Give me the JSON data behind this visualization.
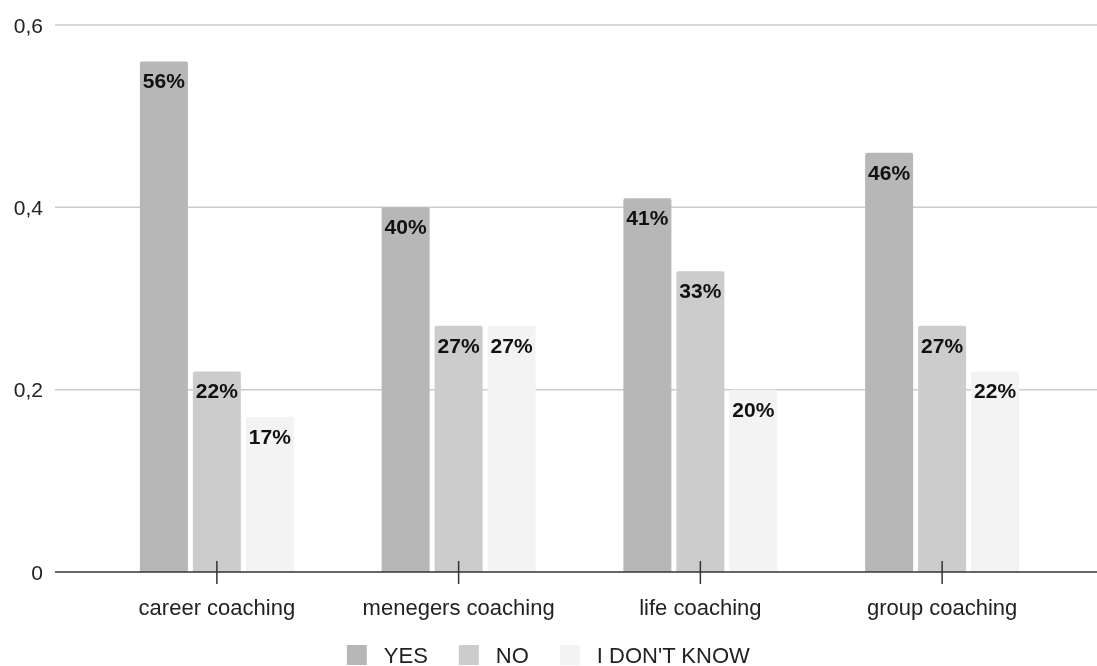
{
  "chart_data": {
    "type": "bar",
    "categories": [
      "career coaching",
      "menegers coaching",
      "life coaching",
      "group coaching"
    ],
    "series": [
      {
        "name": "YES",
        "color": "#b7b7b7",
        "values": [
          0.56,
          0.4,
          0.41,
          0.46
        ],
        "value_labels": [
          "56%",
          "40%",
          "41%",
          "46%"
        ]
      },
      {
        "name": "NO",
        "color": "#cccccc",
        "values": [
          0.22,
          0.27,
          0.33,
          0.27
        ],
        "value_labels": [
          "22%",
          "27%",
          "33%",
          "27%"
        ]
      },
      {
        "name": "I DON'T KNOW",
        "color": "#f3f3f3",
        "values": [
          0.17,
          0.27,
          0.2,
          0.22
        ],
        "value_labels": [
          "17%",
          "27%",
          "20%",
          "22%"
        ]
      }
    ],
    "ylim": [
      0,
      0.6
    ],
    "yticks": [
      0,
      {
        "value": 0.2,
        "label": "0,2"
      },
      {
        "value": 0.4,
        "label": "0,4"
      },
      {
        "value": 0.6,
        "label": "0,6"
      }
    ],
    "grid": "y",
    "legend": "bottom"
  }
}
